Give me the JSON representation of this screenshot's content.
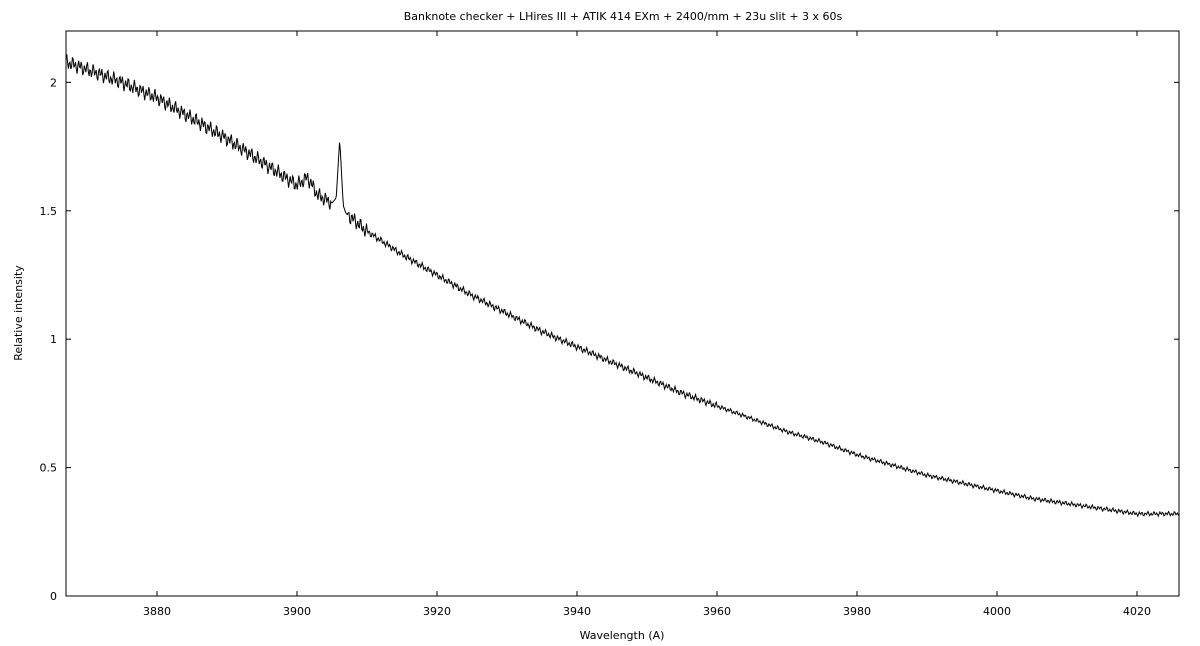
{
  "chart_data": {
    "type": "line",
    "title": "Banknote checker + LHires III + ATIK 414 EXm + 2400/mm + 23u slit + 3 x 60s",
    "xlabel": "Wavelength (A)",
    "ylabel": "Relative intensity",
    "xlim": [
      3867,
      4026
    ],
    "ylim": [
      0,
      2.2
    ],
    "x_ticks": [
      3880,
      3900,
      3920,
      3940,
      3960,
      3980,
      4000,
      4020
    ],
    "y_ticks": [
      0,
      0.5,
      1,
      1.5,
      2
    ],
    "x_tick_labels": [
      "3880",
      "3900",
      "3920",
      "3940",
      "3960",
      "3980",
      "4000",
      "4020"
    ],
    "y_tick_labels": [
      "0",
      "0.5",
      "1",
      "1.5",
      "2"
    ],
    "grid": false,
    "legend": "none",
    "series": [
      {
        "color": "#000000",
        "x": [
          3867,
          3870,
          3875,
          3880,
          3885,
          3890,
          3895,
          3900,
          3901.5,
          3903,
          3905,
          3905.6,
          3906.1,
          3906.6,
          3907,
          3910,
          3915,
          3920,
          3925,
          3930,
          3935,
          3940,
          3945,
          3950,
          3955,
          3960,
          3965,
          3970,
          3975,
          3980,
          3985,
          3990,
          3995,
          4000,
          4005,
          4010,
          4015,
          4020,
          4023,
          4026
        ],
        "y": [
          2.08,
          2.05,
          2.0,
          1.94,
          1.86,
          1.78,
          1.69,
          1.6,
          1.63,
          1.56,
          1.53,
          1.55,
          1.78,
          1.52,
          1.49,
          1.42,
          1.33,
          1.25,
          1.17,
          1.1,
          1.03,
          0.97,
          0.91,
          0.85,
          0.79,
          0.74,
          0.69,
          0.64,
          0.6,
          0.55,
          0.51,
          0.47,
          0.44,
          0.41,
          0.38,
          0.36,
          0.34,
          0.32,
          0.32,
          0.32
        ]
      }
    ]
  }
}
